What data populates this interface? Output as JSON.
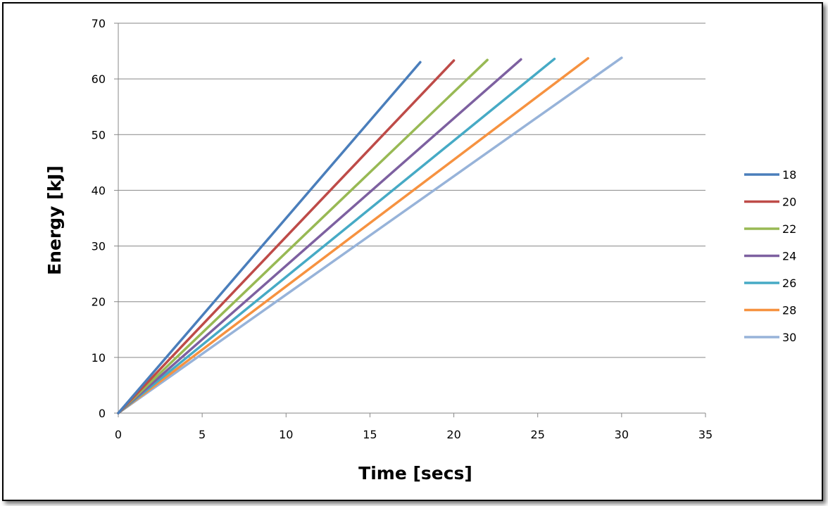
{
  "chart_data": {
    "type": "line",
    "title": "",
    "xlabel": "Time [secs]",
    "ylabel": "Energy [kJ]",
    "xlim": [
      0,
      35
    ],
    "ylim": [
      0,
      70
    ],
    "xticks": [
      0,
      5,
      10,
      15,
      20,
      25,
      30,
      35
    ],
    "yticks": [
      0,
      10,
      20,
      30,
      40,
      50,
      60,
      70
    ],
    "grid": "horizontal",
    "legend_position": "right",
    "series": [
      {
        "name": "18",
        "color": "#4a7ebb",
        "points": [
          [
            0,
            0
          ],
          [
            18,
            63.0
          ]
        ]
      },
      {
        "name": "20",
        "color": "#be4b48",
        "points": [
          [
            0,
            0
          ],
          [
            20,
            63.3
          ]
        ]
      },
      {
        "name": "22",
        "color": "#98b954",
        "points": [
          [
            0,
            0
          ],
          [
            22,
            63.4
          ]
        ]
      },
      {
        "name": "24",
        "color": "#7d60a0",
        "points": [
          [
            0,
            0
          ],
          [
            24,
            63.5
          ]
        ]
      },
      {
        "name": "26",
        "color": "#46aac5",
        "points": [
          [
            0,
            0
          ],
          [
            26,
            63.6
          ]
        ]
      },
      {
        "name": "28",
        "color": "#f69240",
        "points": [
          [
            0,
            0
          ],
          [
            28,
            63.7
          ]
        ]
      },
      {
        "name": "30",
        "color": "#97b3d9",
        "points": [
          [
            0,
            0
          ],
          [
            30,
            63.8
          ]
        ]
      }
    ]
  }
}
